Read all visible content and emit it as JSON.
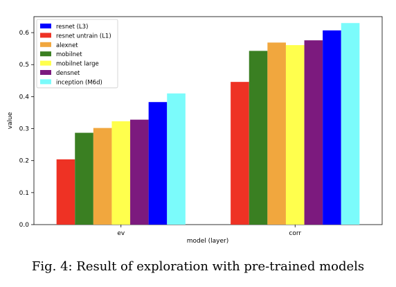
{
  "caption": "Fig. 4: Result of exploration with pre-trained models",
  "chart_data": {
    "type": "bar",
    "title": "",
    "xlabel": "model (layer)",
    "ylabel": "value",
    "ylim": [
      0,
      0.65
    ],
    "yticks": [
      "0.0",
      "0.1",
      "0.2",
      "0.3",
      "0.4",
      "0.5",
      "0.6"
    ],
    "categories": [
      "ev",
      "corr"
    ],
    "legend_position": "top-left",
    "grid": false,
    "series": [
      {
        "name": "resnet (L3)",
        "color": "#0000ff",
        "values": [
          0.383,
          0.607
        ]
      },
      {
        "name": "resnet untrain (L1)",
        "color": "#ee3224",
        "values": [
          0.204,
          0.446
        ]
      },
      {
        "name": "alexnet",
        "color": "#f1a73e",
        "values": [
          0.302,
          0.569
        ]
      },
      {
        "name": "mobilnet",
        "color": "#3a7f22",
        "values": [
          0.287,
          0.543
        ]
      },
      {
        "name": "mobilnet large",
        "color": "#ffff4d",
        "values": [
          0.323,
          0.561
        ]
      },
      {
        "name": "densnet",
        "color": "#7c1a7e",
        "values": [
          0.328,
          0.576
        ]
      },
      {
        "name": "inception (M6d)",
        "color": "#7bfbfb",
        "values": [
          0.41,
          0.63
        ]
      }
    ],
    "bar_order": [
      "resnet untrain (L1)",
      "mobilnet",
      "alexnet",
      "mobilnet large",
      "densnet",
      "resnet (L3)",
      "inception (M6d)"
    ]
  }
}
